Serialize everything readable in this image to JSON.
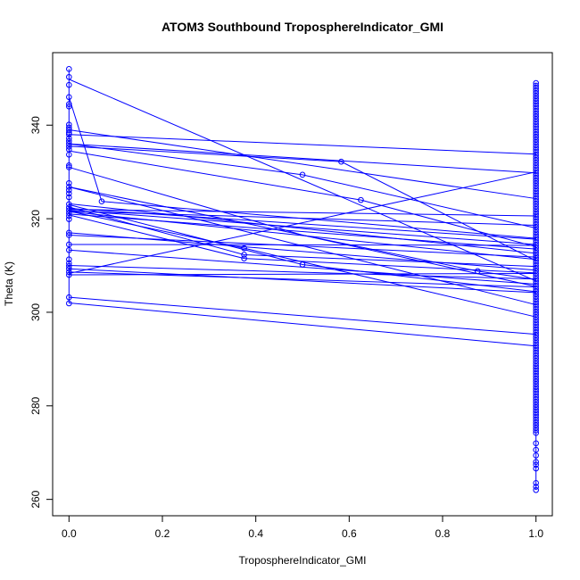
{
  "chart_data": {
    "type": "line",
    "title": "ATOM3 Southbound TroposphereIndicator_GMI",
    "xlabel": "TroposphereIndicator_GMI",
    "ylabel": "Theta (K)",
    "xlim": [
      -0.035,
      1.035
    ],
    "ylim": [
      256.5,
      355.5
    ],
    "x_ticks": [
      0.0,
      0.2,
      0.4,
      0.6,
      0.8,
      1.0
    ],
    "x_tick_labels": [
      "0.0",
      "0.2",
      "0.4",
      "0.6",
      "0.8",
      "1.0"
    ],
    "y_ticks": [
      260,
      280,
      300,
      320,
      340
    ],
    "y_tick_labels": [
      "260",
      "280",
      "300",
      "320",
      "340"
    ],
    "grid": false,
    "legend": "none",
    "color": "#0000ff",
    "series": [
      {
        "x": [
          0,
          1
        ],
        "y": [
          338,
          333.8
        ]
      },
      {
        "x": [
          0,
          1
        ],
        "y": [
          339,
          324.3
        ]
      },
      {
        "x": [
          0,
          1
        ],
        "y": [
          336,
          329.8
        ]
      },
      {
        "x": [
          0,
          0.5,
          1
        ],
        "y": [
          331,
          316.5,
          305.5
        ]
      },
      {
        "x": [
          0,
          0.583,
          1
        ],
        "y": [
          335.5,
          332.2,
          311
        ]
      },
      {
        "x": [
          0,
          1
        ],
        "y": [
          349.8,
          306.7
        ]
      },
      {
        "x": [
          0,
          0.07
        ],
        "y": [
          346,
          323.7
        ]
      },
      {
        "x": [
          0,
          0.625,
          1
        ],
        "y": [
          334.5,
          324,
          314
        ]
      },
      {
        "x": [
          0,
          0.5,
          1
        ],
        "y": [
          336,
          329.4,
          318
        ]
      },
      {
        "x": [
          0,
          0.875,
          1
        ],
        "y": [
          326.8,
          308.8,
          307
        ]
      },
      {
        "x": [
          0,
          1
        ],
        "y": [
          326.8,
          301.6
        ]
      },
      {
        "x": [
          0,
          0.375,
          1
        ],
        "y": [
          321.6,
          313.7,
          299
        ]
      },
      {
        "x": [
          0,
          0.375,
          1
        ],
        "y": [
          322.5,
          312.3,
          309.8
        ]
      },
      {
        "x": [
          0,
          0.375,
          1
        ],
        "y": [
          320.8,
          311.5,
          308.4
        ]
      },
      {
        "x": [
          0,
          0.5,
          1
        ],
        "y": [
          323,
          310.2,
          304.4
        ]
      },
      {
        "x": [
          0,
          1
        ],
        "y": [
          321.8,
          314.5
        ]
      },
      {
        "x": [
          0,
          1
        ],
        "y": [
          321,
          313.5
        ]
      },
      {
        "x": [
          0,
          1
        ],
        "y": [
          322.2,
          315.6
        ]
      },
      {
        "x": [
          0,
          1
        ],
        "y": [
          323.2,
          312.6
        ]
      },
      {
        "x": [
          0,
          1
        ],
        "y": [
          321.5,
          311.3
        ]
      },
      {
        "x": [
          0,
          1
        ],
        "y": [
          322,
          320.6
        ]
      },
      {
        "x": [
          0,
          1
        ],
        "y": [
          321.6,
          318.6
        ]
      },
      {
        "x": [
          0,
          1
        ],
        "y": [
          317,
          309
        ]
      },
      {
        "x": [
          0,
          1
        ],
        "y": [
          316.5,
          311.8
        ]
      },
      {
        "x": [
          0,
          1
        ],
        "y": [
          314.5,
          314.3
        ]
      },
      {
        "x": [
          0,
          1
        ],
        "y": [
          313.3,
          306
        ]
      },
      {
        "x": [
          0,
          1
        ],
        "y": [
          310,
          307.1
        ]
      },
      {
        "x": [
          0,
          1
        ],
        "y": [
          309.3,
          304.2
        ]
      },
      {
        "x": [
          0,
          1
        ],
        "y": [
          308.6,
          305.4
        ]
      },
      {
        "x": [
          0,
          1
        ],
        "y": [
          308,
          308.3
        ]
      },
      {
        "x": [
          0,
          1
        ],
        "y": [
          308.3,
          330
        ]
      },
      {
        "x": [
          0,
          1
        ],
        "y": [
          303.2,
          295.3
        ]
      },
      {
        "x": [
          0,
          1
        ],
        "y": [
          302,
          292.8
        ]
      },
      {
        "x": [
          0.07,
          1
        ],
        "y": [
          323.7,
          315.8
        ]
      }
    ],
    "points_x0": [
      352,
      350.3,
      348.6,
      346,
      344.5,
      344,
      340.1,
      339.5,
      339,
      338.4,
      338,
      337.2,
      336.6,
      336,
      335.4,
      334.8,
      333.7,
      331.4,
      331,
      327.6,
      326.8,
      326.1,
      325.4,
      324.6,
      323.1,
      322.4,
      321.8,
      321.2,
      320.6,
      319.9,
      317,
      316.5,
      314.5,
      313.3,
      311.3,
      310.5,
      309.9,
      309.3,
      308.6,
      308,
      303.2,
      301.9
    ],
    "points_mid": [
      {
        "x": 0.07,
        "y": 323.7
      },
      {
        "x": 0.375,
        "y": 313.7
      },
      {
        "x": 0.375,
        "y": 312.3
      },
      {
        "x": 0.375,
        "y": 311.5
      },
      {
        "x": 0.5,
        "y": 329.4
      },
      {
        "x": 0.5,
        "y": 310.2
      },
      {
        "x": 0.583,
        "y": 332.2
      },
      {
        "x": 0.625,
        "y": 324
      },
      {
        "x": 0.875,
        "y": 308.8
      }
    ],
    "points_x1_range": [
      262,
      349
    ],
    "points_x1_extra": [
      262,
      262.7,
      263.5,
      266.6,
      267.4,
      268,
      269.4,
      270.6,
      272
    ]
  }
}
